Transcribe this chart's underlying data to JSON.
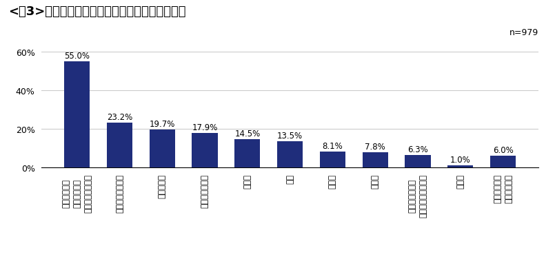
{
  "title": "<図3>　おせち以外の「お取り寄せグルメ」用途",
  "n_label": "n=979",
  "x_labels_lines": [
    [
      "日常において",
      "自分や家族が",
      "家族で楽しむため"
    ],
    [
      "誰かの誕生日祝い"
    ],
    [
      "クリスマス"
    ],
    [
      "記念日のお祝い"
    ],
    [
      "手土産"
    ],
    [
      "進物"
    ],
    [
      "忘年会"
    ],
    [
      "新年会"
    ],
    [
      "バレンタイン・",
      "またはホワイトデー"
    ],
    [
      "その他"
    ],
    [
      "わからない・",
      "覚えていない"
    ]
  ],
  "values": [
    55.0,
    23.2,
    19.7,
    17.9,
    14.5,
    13.5,
    8.1,
    7.8,
    6.3,
    1.0,
    6.0
  ],
  "bar_color": "#1F2D7B",
  "background_color": "#FFFFFF",
  "ylim": [
    0,
    64
  ],
  "yticks": [
    0,
    20,
    40,
    60
  ],
  "ytick_labels": [
    "0%",
    "20%",
    "40%",
    "60%"
  ],
  "title_fontsize": 13,
  "label_fontsize": 8.5,
  "tick_fontsize": 9,
  "value_fontsize": 8.5
}
